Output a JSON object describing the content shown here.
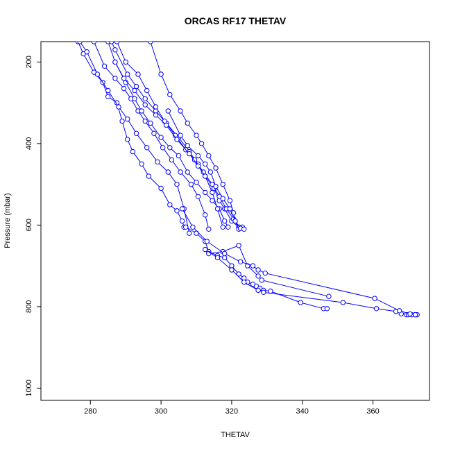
{
  "chart_data": {
    "type": "line",
    "title": "ORCAS RF17 THETAV",
    "xlabel": "THETAV",
    "ylabel": "Pressure (mbar)",
    "xlim": [
      266,
      376
    ],
    "ylim": [
      1030,
      150
    ],
    "y_reversed": true,
    "xticks": [
      280,
      300,
      320,
      340,
      360
    ],
    "yticks": [
      200,
      400,
      600,
      800,
      1000
    ],
    "color": "#0000ff",
    "marker": "open-circle",
    "line_style": "solid",
    "series": [
      {
        "x": [
          276.5,
          278.0,
          281.0,
          283.5,
          285.0,
          287.5,
          289.0,
          290.5,
          292.0,
          294.5,
          296.5,
          300.0,
          302.5,
          304.5,
          306.0,
          306.5
        ],
        "y": [
          150,
          180,
          225,
          250,
          285,
          300,
          345,
          390,
          420,
          450,
          480,
          510,
          550,
          565,
          590,
          605
        ]
      },
      {
        "x": [
          277.0,
          279.0,
          282.0,
          285.0,
          288.0,
          290.5,
          293.0,
          296.0,
          299.0,
          302.0,
          304.5,
          306.5,
          308.0
        ],
        "y": [
          150,
          175,
          230,
          270,
          310,
          340,
          375,
          410,
          445,
          470,
          500,
          560,
          620
        ]
      },
      {
        "x": [
          281.0,
          284.0,
          287.0,
          289.5,
          291.5,
          293.5,
          295.5,
          298.0,
          300.5,
          303.0,
          305.5,
          308.5,
          310.5,
          312.5,
          313.5
        ],
        "y": [
          150,
          210,
          240,
          265,
          290,
          320,
          345,
          375,
          410,
          440,
          470,
          500,
          530,
          575,
          610
        ]
      },
      {
        "x": [
          285.0,
          287.0,
          290.0,
          292.5,
          294.5,
          297.0,
          300.0,
          302.5,
          305.0,
          307.5,
          310.0,
          312.5,
          314.5,
          316.5,
          318.0,
          319.0
        ],
        "y": [
          150,
          200,
          250,
          290,
          320,
          350,
          385,
          410,
          430,
          470,
          495,
          520,
          540,
          560,
          590,
          605
        ]
      },
      {
        "x": [
          286.0,
          287.0,
          290.5,
          293.0,
          295.5,
          298.5,
          301.5,
          305.0,
          308.0,
          310.5,
          312.5,
          315.0,
          316.5,
          318.0,
          320.0,
          322.0
        ],
        "y": [
          150,
          170,
          230,
          260,
          290,
          320,
          350,
          385,
          420,
          450,
          480,
          510,
          540,
          560,
          590,
          605
        ]
      },
      {
        "x": [
          287.5,
          290.0,
          293.5,
          296.0,
          298.5,
          301.0,
          304.0,
          307.0,
          309.5,
          312.0,
          314.5,
          316.5,
          318.5,
          320.5,
          322.0
        ],
        "y": [
          150,
          200,
          230,
          270,
          310,
          345,
          380,
          415,
          440,
          470,
          500,
          530,
          560,
          585,
          605
        ]
      },
      {
        "x": [
          287.0,
          289.5,
          292.5,
          295.5,
          298.5,
          301.5,
          304.5,
          308.0,
          310.5,
          312.5,
          314.5,
          316.0,
          317.5
        ],
        "y": [
          200,
          240,
          270,
          305,
          330,
          355,
          390,
          425,
          455,
          480,
          520,
          560,
          605
        ]
      },
      {
        "x": [
          297.0,
          300.0,
          302.5,
          305.5,
          307.5,
          310.0,
          311.5,
          313.5,
          315.5,
          317.5,
          319.5,
          320.5,
          321.0,
          322.0,
          323.0
        ],
        "y": [
          150,
          230,
          280,
          320,
          350,
          380,
          400,
          430,
          460,
          500,
          540,
          570,
          590,
          610,
          605
        ]
      },
      {
        "x": [
          302.0,
          305.5,
          307.5,
          310.5,
          312.5,
          314.0,
          315.5,
          317.5,
          319.5,
          321.0,
          322.5,
          323.5
        ],
        "y": [
          320,
          380,
          405,
          430,
          450,
          470,
          505,
          535,
          560,
          590,
          608,
          610
        ]
      },
      {
        "x": [
          307.0,
          310.0,
          312.5,
          313.5,
          316.0,
          318.0,
          320.0,
          322.0,
          323.5,
          324.5,
          326.0,
          327.0,
          328.0,
          329.0,
          331.0,
          339.5,
          346.0,
          347.0
        ],
        "y": [
          605,
          620,
          640,
          665,
          675,
          680,
          700,
          720,
          730,
          740,
          745,
          750,
          755,
          760,
          762,
          790,
          805,
          805
        ]
      },
      {
        "x": [
          313.5,
          317.5,
          322.0,
          324.5,
          327.5,
          328.5,
          347.5
        ],
        "y": [
          670,
          665,
          650,
          700,
          725,
          735,
          775
        ]
      },
      {
        "x": [
          312.5,
          316.0,
          320.0,
          323.5,
          327.5,
          329.0,
          351.5,
          361.0,
          366.5,
          368.0,
          369.5,
          370.0,
          371.0,
          372.0,
          372.5
        ],
        "y": [
          660,
          680,
          710,
          740,
          760,
          765,
          790,
          805,
          812,
          818,
          820,
          820,
          820,
          820,
          820
        ]
      },
      {
        "x": [
          306.0,
          309.0,
          313.0,
          318.0,
          322.5,
          326.0,
          327.5,
          329.5,
          360.5,
          367.5,
          370.5,
          372.0
        ],
        "y": [
          560,
          605,
          640,
          670,
          690,
          700,
          710,
          718,
          780,
          810,
          818,
          820
        ]
      }
    ]
  }
}
